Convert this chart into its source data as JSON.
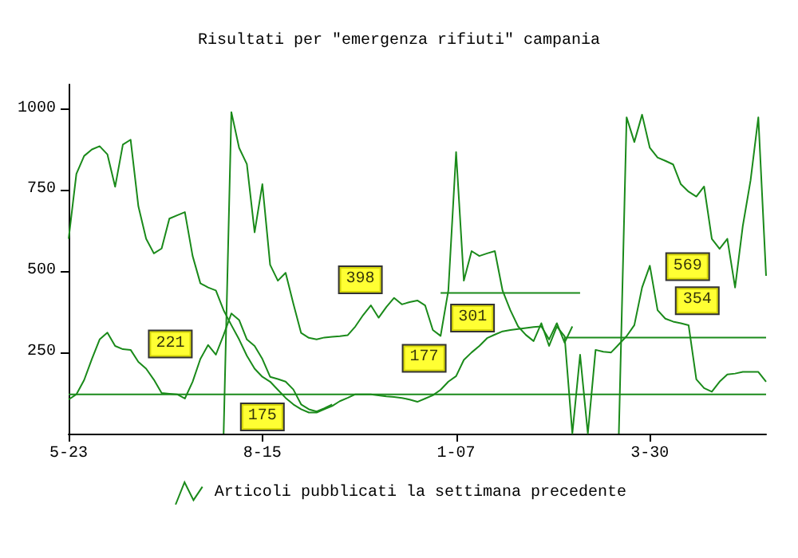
{
  "chart_data": {
    "type": "line",
    "title": "Risultati per \"emergenza rifiuti\" campania",
    "categories": [
      "5-23",
      null,
      null,
      null,
      null,
      null,
      null,
      null,
      null,
      null,
      null,
      null,
      null,
      null,
      null,
      null,
      null,
      null,
      null,
      null,
      null,
      null,
      null,
      null,
      null,
      "8-15",
      null,
      null,
      null,
      null,
      null,
      null,
      null,
      null,
      null,
      null,
      null,
      null,
      null,
      null,
      null,
      null,
      null,
      null,
      null,
      null,
      null,
      null,
      null,
      null,
      "1-07",
      null,
      null,
      null,
      null,
      null,
      null,
      null,
      null,
      null,
      null,
      null,
      null,
      null,
      null,
      null,
      null,
      null,
      null,
      null,
      null,
      null,
      null,
      null,
      null,
      "3-30",
      null,
      null,
      null,
      null,
      null,
      null,
      null,
      null,
      null,
      null,
      null,
      null,
      null,
      null,
      null
    ],
    "ylim": [
      0,
      1075
    ],
    "yticks": [
      250,
      500,
      750,
      1000
    ],
    "grid": false,
    "legend": "bottom",
    "marker": "none",
    "line_style": "solid",
    "series": [
      {
        "name": "Articoli pubblicati la settimana precedente",
        "color": "#1a8a1a",
        "values": [
          600,
          800,
          855,
          875,
          885,
          860,
          760,
          890,
          905,
          700,
          600,
          555,
          570,
          662,
          672,
          682,
          547,
          463,
          450,
          441,
          380,
          334,
          290,
          240,
          200,
          175,
          160,
          135,
          110,
          90,
          75,
          65,
          65,
          75,
          85,
          100,
          110,
          121,
          121,
          121,
          118,
          115,
          113,
          110,
          105,
          98,
          108,
          118,
          135,
          160,
          177,
          227,
          250,
          270,
          294,
          305,
          315,
          319,
          322,
          325,
          328,
          330,
          290,
          340,
          280,
          330,
          null,
          null,
          null,
          null,
          null,
          null,
          null,
          null,
          null,
          null,
          null,
          null,
          null,
          null,
          null,
          null,
          null,
          null,
          null,
          null,
          null,
          null,
          null,
          null,
          null
        ],
        "value_labels": [
          null,
          null,
          null,
          null,
          null,
          null,
          null,
          null,
          null,
          null,
          null,
          null,
          null,
          null,
          null,
          null,
          null,
          null,
          null,
          null,
          null,
          null,
          null,
          null,
          null,
          "175",
          null,
          null,
          null,
          null,
          null,
          null,
          null,
          null,
          null,
          null,
          null,
          null,
          null,
          null,
          null,
          null,
          null,
          null,
          null,
          null,
          null,
          null,
          null,
          null,
          "177",
          null,
          null,
          null,
          null,
          null,
          null,
          null,
          null,
          null,
          null,
          null,
          null,
          null,
          null,
          null,
          null,
          null,
          null,
          null,
          null,
          null,
          null,
          null,
          null,
          null,
          null,
          null,
          null,
          null,
          null,
          null,
          null,
          null,
          null,
          null,
          null,
          null,
          null,
          null,
          null
        ]
      },
      {
        "color": "#1a8a1a",
        "values": [
          105,
          121,
          165,
          230,
          290,
          311,
          270,
          260,
          258,
          221,
          200,
          166,
          125,
          123,
          121,
          108,
          160,
          230,
          273,
          243,
          304,
          370,
          350,
          290,
          270,
          230,
          175,
          168,
          160,
          136,
          90,
          75,
          68,
          78,
          90,
          null,
          null,
          null,
          null,
          null,
          null,
          null,
          null,
          null,
          null,
          null,
          null,
          null,
          null,
          null,
          null,
          null,
          null,
          null,
          null,
          null,
          null,
          null,
          null,
          null,
          null,
          null,
          null,
          null,
          null,
          null,
          null,
          null,
          null,
          null,
          null,
          null,
          null,
          null,
          null,
          null,
          null,
          null,
          null,
          null,
          null,
          null,
          null,
          null,
          null,
          null,
          null,
          null,
          null,
          null,
          null
        ],
        "value_labels": [
          null,
          null,
          null,
          null,
          null,
          null,
          null,
          null,
          null,
          "221",
          null,
          null,
          null,
          null,
          null,
          null,
          null,
          null,
          null,
          null,
          null,
          null,
          null,
          null,
          null,
          null,
          null,
          null,
          null,
          null,
          null,
          null,
          null,
          null,
          null,
          null,
          null,
          null,
          null,
          null,
          null,
          null,
          null,
          null,
          null,
          null,
          null,
          null,
          null,
          null,
          null,
          null,
          null,
          null,
          null,
          null,
          null,
          null,
          null,
          null,
          null,
          null,
          null,
          null,
          null,
          null,
          null,
          null,
          null,
          null,
          null,
          null,
          null,
          null,
          null,
          null,
          null,
          null,
          null,
          null,
          null,
          null,
          null,
          null,
          null,
          null,
          null,
          null,
          null,
          null,
          null
        ]
      },
      {
        "color": "#1a8a1a",
        "values": [
          null,
          null,
          null,
          null,
          null,
          null,
          null,
          null,
          null,
          null,
          null,
          null,
          null,
          null,
          null,
          null,
          null,
          null,
          null,
          null,
          0,
          990,
          880,
          830,
          620,
          768,
          520,
          471,
          495,
          400,
          310,
          295,
          290,
          296,
          298,
          300,
          303,
          330,
          365,
          395,
          357,
          390,
          418,
          398,
          405,
          410,
          395,
          319,
          301,
          441,
          867,
          471,
          562,
          547,
          555,
          562,
          440,
          380,
          330,
          304,
          285,
          340,
          270,
          330,
          300,
          0,
          243,
          0,
          258,
          252,
          250,
          275,
          300,
          334,
          450,
          517,
          380,
          354,
          345,
          340,
          334,
          167,
          140,
          129,
          160,
          182,
          185,
          190,
          190,
          190,
          160
        ],
        "value_labels": [
          null,
          null,
          null,
          null,
          null,
          null,
          null,
          null,
          null,
          null,
          null,
          null,
          null,
          null,
          null,
          null,
          null,
          null,
          null,
          null,
          null,
          null,
          null,
          null,
          null,
          null,
          null,
          null,
          null,
          null,
          null,
          null,
          null,
          null,
          null,
          null,
          null,
          null,
          null,
          null,
          null,
          null,
          null,
          "398",
          null,
          null,
          null,
          null,
          "301",
          null,
          null,
          null,
          null,
          null,
          null,
          null,
          null,
          null,
          null,
          null,
          null,
          null,
          null,
          null,
          null,
          null,
          null,
          null,
          null,
          null,
          null,
          null,
          null,
          null,
          null,
          null,
          null,
          "354",
          null,
          null,
          null,
          null,
          null,
          null,
          null,
          null,
          null,
          null,
          null,
          null,
          null
        ]
      },
      {
        "color": "#1a8a1a",
        "values": [
          null,
          null,
          null,
          null,
          null,
          null,
          null,
          null,
          null,
          null,
          null,
          null,
          null,
          null,
          null,
          null,
          null,
          null,
          null,
          null,
          null,
          null,
          null,
          null,
          null,
          null,
          null,
          null,
          null,
          null,
          null,
          null,
          null,
          null,
          null,
          null,
          null,
          null,
          null,
          null,
          null,
          null,
          null,
          null,
          null,
          null,
          null,
          null,
          null,
          null,
          null,
          null,
          null,
          null,
          null,
          null,
          null,
          null,
          null,
          null,
          null,
          null,
          null,
          null,
          null,
          null,
          null,
          null,
          null,
          null,
          null,
          0,
          974,
          898,
          982,
          880,
          850,
          840,
          829,
          768,
          745,
          730,
          761,
          600,
          569,
          600,
          450,
          640,
          780,
          974,
          486
        ],
        "value_labels": [
          null,
          null,
          null,
          null,
          null,
          null,
          null,
          null,
          null,
          null,
          null,
          null,
          null,
          null,
          null,
          null,
          null,
          null,
          null,
          null,
          null,
          null,
          null,
          null,
          null,
          null,
          null,
          null,
          null,
          null,
          null,
          null,
          null,
          null,
          null,
          null,
          null,
          null,
          null,
          null,
          null,
          null,
          null,
          null,
          null,
          null,
          null,
          null,
          null,
          null,
          null,
          null,
          null,
          null,
          null,
          null,
          null,
          null,
          null,
          null,
          null,
          null,
          null,
          null,
          null,
          null,
          null,
          null,
          null,
          null,
          null,
          null,
          null,
          null,
          null,
          null,
          null,
          null,
          null,
          null,
          null,
          null,
          null,
          null,
          "569",
          null,
          null,
          null,
          null,
          null,
          null
        ]
      },
      {
        "color": "#1a8a1a",
        "values": [
          121,
          121,
          121,
          121,
          121,
          121,
          121,
          121,
          121,
          121,
          121,
          121,
          121,
          121,
          121,
          121,
          121,
          121,
          121,
          121,
          121,
          121,
          121,
          121,
          121,
          121,
          121,
          121,
          121,
          121,
          121,
          121,
          121,
          121,
          121,
          121,
          121,
          121,
          121,
          121,
          121,
          121,
          121,
          121,
          121,
          121,
          121,
          121,
          121,
          121,
          121,
          121,
          121,
          121,
          121,
          121,
          121,
          121,
          121,
          121,
          121,
          121,
          121,
          121,
          121,
          121,
          121,
          121,
          121,
          121,
          121,
          121,
          121,
          121,
          121,
          121,
          121,
          121,
          121,
          121,
          121,
          121,
          121,
          121,
          121,
          121,
          121,
          121,
          121,
          121,
          121
        ]
      },
      {
        "color": "#1a8a1a",
        "values": [
          null,
          null,
          null,
          null,
          null,
          null,
          null,
          null,
          null,
          null,
          null,
          null,
          null,
          null,
          null,
          null,
          null,
          null,
          null,
          null,
          null,
          null,
          null,
          null,
          null,
          null,
          null,
          null,
          null,
          null,
          null,
          null,
          null,
          null,
          null,
          null,
          null,
          null,
          null,
          null,
          null,
          null,
          null,
          null,
          null,
          null,
          null,
          null,
          null,
          null,
          null,
          null,
          null,
          null,
          null,
          null,
          null,
          null,
          null,
          null,
          null,
          null,
          null,
          null,
          296,
          296,
          296,
          296,
          296,
          296,
          296,
          296,
          296,
          296,
          296,
          296,
          296,
          296,
          296,
          296,
          296,
          296,
          296,
          296,
          296,
          296,
          296,
          296,
          296,
          296,
          296
        ]
      },
      {
        "color": "#1a8a1a",
        "values": [
          null,
          null,
          null,
          null,
          null,
          null,
          null,
          null,
          null,
          null,
          null,
          null,
          null,
          null,
          null,
          null,
          null,
          null,
          null,
          null,
          null,
          null,
          null,
          null,
          null,
          null,
          null,
          null,
          null,
          null,
          null,
          null,
          null,
          null,
          null,
          null,
          null,
          null,
          null,
          null,
          null,
          null,
          null,
          null,
          null,
          null,
          null,
          null,
          433,
          433,
          433,
          433,
          433,
          433,
          433,
          433,
          433,
          433,
          433,
          433,
          433,
          433,
          433,
          433,
          433,
          433,
          433,
          null,
          null,
          null,
          null,
          null,
          null,
          null,
          null,
          null,
          null,
          null,
          null,
          null,
          null,
          null,
          null,
          null,
          null,
          null,
          null,
          null,
          null,
          null,
          null
        ]
      }
    ]
  }
}
